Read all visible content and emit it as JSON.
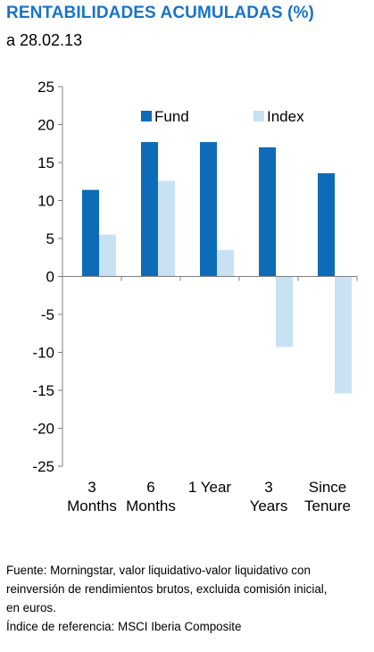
{
  "header": {
    "title": "RENTABILIDADES ACUMULADAS (%)",
    "subtitle": "a 28.02.13"
  },
  "colors": {
    "title": "#1a73c9",
    "fund": "#0e6bb8",
    "index": "#c8e2f3",
    "axis": "#7f7f7f"
  },
  "chart_data": {
    "type": "bar",
    "categories": [
      [
        "3",
        "Months"
      ],
      [
        "6",
        "Months"
      ],
      [
        "1 Year"
      ],
      [
        "3",
        "Years"
      ],
      [
        "Since",
        "Tenure"
      ]
    ],
    "series": [
      {
        "name": "Fund",
        "values": [
          11.4,
          17.7,
          17.7,
          17.0,
          13.6
        ]
      },
      {
        "name": "Index",
        "values": [
          5.5,
          12.6,
          3.5,
          -9.3,
          -15.4
        ]
      }
    ],
    "ylim": [
      -25,
      25
    ],
    "yticks": [
      25,
      20,
      15,
      10,
      5,
      0,
      -5,
      -10,
      -15,
      -20,
      -25
    ],
    "grid": false,
    "legend": "top"
  },
  "notes": [
    "Fuente: Morningstar, valor liquidativo-valor liquidativo con",
    "reinversión de rendimientos brutos, excluida comisión inicial,",
    "en euros.",
    "Índice de referencia: MSCI Iberia Composite"
  ]
}
